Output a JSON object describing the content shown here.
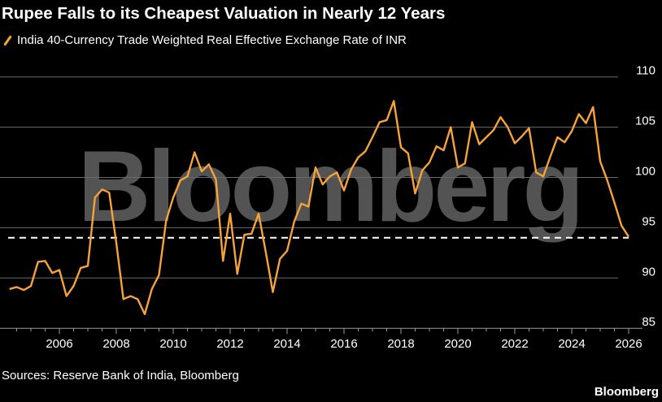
{
  "chart_data": {
    "type": "line",
    "title": "Rupee Falls to its Cheapest Valuation in Nearly 12 Years",
    "series": [
      {
        "name": "India 40-Currency Trade Weighted Real Effective Exchange Rate of INR",
        "color": "#f6a33a",
        "x": [
          "2004-Q2",
          "2004-Q3",
          "2004-Q4",
          "2005-Q1",
          "2005-Q2",
          "2005-Q3",
          "2005-Q4",
          "2006-Q1",
          "2006-Q2",
          "2006-Q3",
          "2006-Q4",
          "2007-Q1",
          "2007-Q2",
          "2007-Q3",
          "2007-Q4",
          "2008-Q1",
          "2008-Q2",
          "2008-Q3",
          "2008-Q4",
          "2009-Q1",
          "2009-Q2",
          "2009-Q3",
          "2009-Q4",
          "2010-Q1",
          "2010-Q2",
          "2010-Q3",
          "2010-Q4",
          "2011-Q1",
          "2011-Q2",
          "2011-Q3",
          "2011-Q4",
          "2012-Q1",
          "2012-Q2",
          "2012-Q3",
          "2012-Q4",
          "2013-Q1",
          "2013-Q2",
          "2013-Q3",
          "2013-Q4",
          "2014-Q1",
          "2014-Q2",
          "2014-Q3",
          "2014-Q4",
          "2015-Q1",
          "2015-Q2",
          "2015-Q3",
          "2015-Q4",
          "2016-Q1",
          "2016-Q2",
          "2016-Q3",
          "2016-Q4",
          "2017-Q1",
          "2017-Q2",
          "2017-Q3",
          "2017-Q4",
          "2018-Q1",
          "2018-Q2",
          "2018-Q3",
          "2018-Q4",
          "2019-Q1",
          "2019-Q2",
          "2019-Q3",
          "2019-Q4",
          "2020-Q1",
          "2020-Q2",
          "2020-Q3",
          "2020-Q4",
          "2021-Q1",
          "2021-Q2",
          "2021-Q3",
          "2021-Q4",
          "2022-Q1",
          "2022-Q2",
          "2022-Q3",
          "2022-Q4",
          "2023-Q1",
          "2023-Q2",
          "2023-Q3",
          "2023-Q4",
          "2024-Q1",
          "2024-Q2",
          "2024-Q3",
          "2024-Q4",
          "2025-Q1",
          "2025-Q2",
          "2025-Q3",
          "2025-Q4",
          "2026-Q1"
        ],
        "values": [
          88.9,
          89.1,
          88.8,
          89.2,
          91.6,
          91.7,
          90.5,
          90.8,
          88.2,
          89.2,
          91.0,
          91.2,
          98.0,
          98.8,
          98.5,
          93.5,
          87.9,
          88.2,
          87.9,
          86.4,
          88.9,
          90.3,
          95.7,
          98.0,
          99.7,
          100.1,
          102.5,
          100.6,
          101.3,
          99.8,
          91.7,
          96.4,
          90.4,
          94.3,
          94.4,
          96.4,
          92.6,
          88.6,
          91.9,
          92.7,
          95.6,
          97.4,
          97.1,
          101.0,
          99.3,
          100.1,
          100.5,
          98.7,
          100.8,
          102.0,
          102.6,
          104.0,
          105.5,
          105.7,
          107.6,
          103.0,
          102.4,
          98.4,
          100.7,
          101.5,
          103.1,
          102.7,
          105.0,
          101.0,
          101.4,
          105.5,
          103.3,
          104.0,
          104.7,
          106.0,
          105.0,
          103.4,
          104.1,
          104.9,
          100.5,
          100.1,
          102.1,
          104.0,
          103.5,
          104.6,
          106.3,
          105.4,
          107.0,
          101.6,
          99.7,
          97.5,
          95.2,
          94.1
        ]
      }
    ],
    "reference_line": {
      "value": 94.0,
      "style": "dashed",
      "color": "#ffffff"
    },
    "y_ticks": [
      "85",
      "90",
      "95",
      "100",
      "105",
      "110"
    ],
    "x_ticks": [
      "2006",
      "2008",
      "2010",
      "2012",
      "2014",
      "2016",
      "2018",
      "2020",
      "2022",
      "2024",
      "2026"
    ],
    "ylim": [
      85,
      110
    ],
    "xlim": [
      "2004",
      "2026"
    ],
    "y_axis_side": "right",
    "grid": "horizontal",
    "legend": "top-left",
    "xlabel": "",
    "ylabel": ""
  },
  "source": "Sources: Reserve Bank of India, Bloomberg",
  "logo": "Bloomberg",
  "watermark": "Bloomberg"
}
